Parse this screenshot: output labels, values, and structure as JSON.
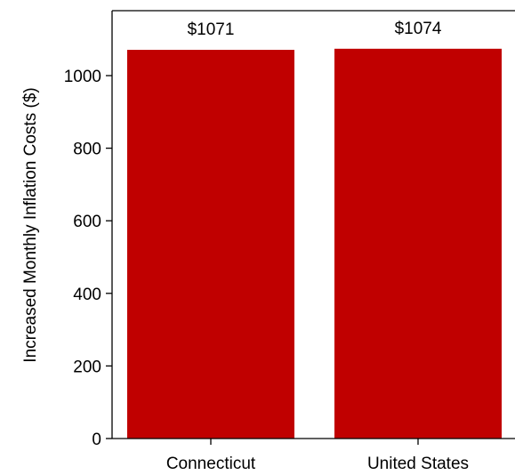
{
  "chart_data": {
    "type": "bar",
    "categories": [
      "Connecticut",
      "United States"
    ],
    "values": [
      1071,
      1074
    ],
    "data_labels": [
      "$1071",
      "$1074"
    ],
    "ylabel": "Increased Monthly Inflation Costs ($)",
    "ylim": [
      0,
      1150
    ],
    "yticks": [
      0,
      200,
      400,
      600,
      800,
      1000
    ],
    "ytick_labels": [
      "0",
      "200",
      "400",
      "600",
      "800",
      "1000"
    ],
    "grid": false,
    "bar_color": "#c00000"
  }
}
